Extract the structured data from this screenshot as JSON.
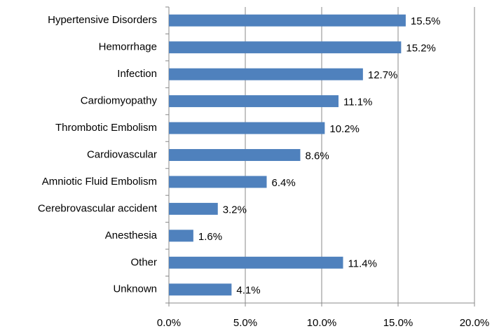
{
  "chart_data": {
    "type": "barh",
    "categories": [
      "Hypertensive Disorders",
      "Hemorrhage",
      "Infection",
      "Cardiomyopathy",
      "Thrombotic Embolism",
      "Cardiovascular",
      "Amniotic Fluid Embolism",
      "Cerebrovascular accident",
      "Anesthesia",
      "Other",
      "Unknown"
    ],
    "values": [
      15.5,
      15.2,
      12.7,
      11.1,
      10.2,
      8.6,
      6.4,
      3.2,
      1.6,
      11.4,
      4.1
    ],
    "value_labels": [
      "15.5%",
      "15.2%",
      "12.7%",
      "11.1%",
      "10.2%",
      "8.6%",
      "6.4%",
      "3.2%",
      "1.6%",
      "11.4%",
      "4.1%"
    ],
    "color": "#4f81bd",
    "xlim": [
      0,
      20
    ],
    "xticks": [
      {
        "value": 0,
        "label": "0.0%"
      },
      {
        "value": 5,
        "label": "5.0%"
      },
      {
        "value": 10,
        "label": "10.0%"
      },
      {
        "value": 15,
        "label": "15.0%"
      },
      {
        "value": 20,
        "label": "20.0%"
      }
    ],
    "grid": true
  }
}
